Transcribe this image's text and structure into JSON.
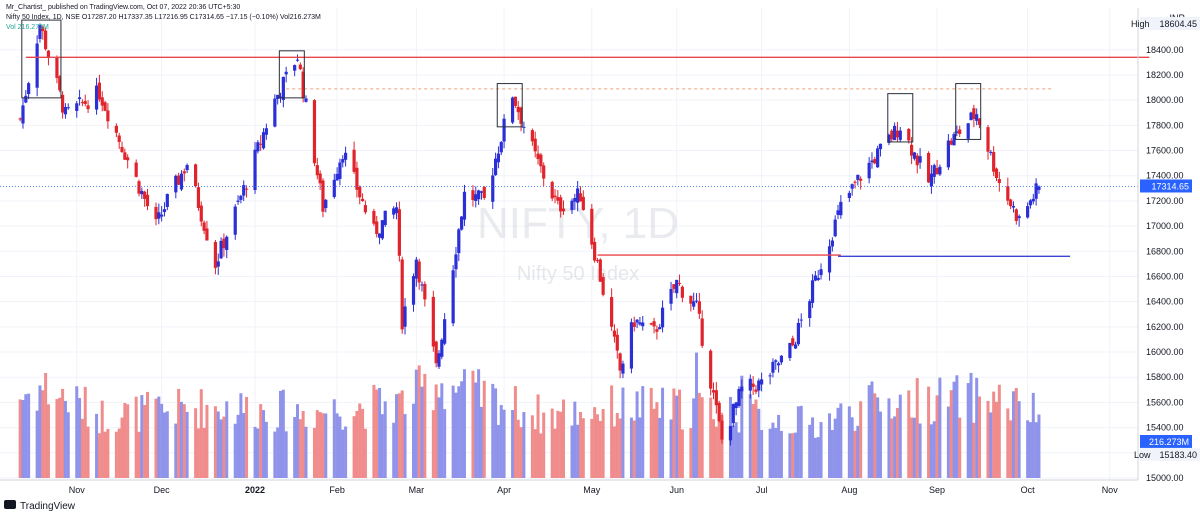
{
  "header": {
    "author_line": "Mr_Chartist_ published on TradingView.com, Oct 07, 2022 20:36 UTC+5:30",
    "ohlc_line": "Nifty 50 Index, 1D, NSE  O17287.20  H17337.35  L17216.95  C17314.65  −17.15 (−0.10%)  Vol216.273M",
    "vol_line": "Vol  216.273M"
  },
  "watermark": {
    "symbol": "NIFTY, 1D",
    "name": "Nifty 50 Index"
  },
  "footer": {
    "brand": "TradingView"
  },
  "colors": {
    "up": "#2a2fd6",
    "down": "#e0242c",
    "vol_up": "#8f93ea",
    "vol_down": "#f08c8c",
    "resistance": "#e8464a",
    "support": "#3b44d4",
    "price_tag": "#2962ff",
    "grid": "#f0f3fa"
  },
  "chart_data": {
    "type": "candlestick",
    "interval": "1D",
    "currency": "INR",
    "y_axis": {
      "currency_label": "INR",
      "range": [
        15000,
        18700
      ],
      "ticks": [
        15000,
        15200,
        15400,
        15600,
        15800,
        16000,
        16200,
        16400,
        16600,
        16800,
        17000,
        17200,
        17400,
        17600,
        17800,
        18000,
        18200,
        18400
      ]
    },
    "x_axis": {
      "tick_labels": [
        {
          "date": "2021-11-01",
          "label": "Nov"
        },
        {
          "date": "2021-12-01",
          "label": "Dec"
        },
        {
          "date": "2022-01-03",
          "label": "2022"
        },
        {
          "date": "2022-02-01",
          "label": "Feb"
        },
        {
          "date": "2022-03-01",
          "label": "Mar"
        },
        {
          "date": "2022-04-01",
          "label": "Apr"
        },
        {
          "date": "2022-05-02",
          "label": "May"
        },
        {
          "date": "2022-06-01",
          "label": "Jun"
        },
        {
          "date": "2022-07-01",
          "label": "Jul"
        },
        {
          "date": "2022-08-01",
          "label": "Aug"
        },
        {
          "date": "2022-09-01",
          "label": "Sep"
        },
        {
          "date": "2022-10-03",
          "label": "Oct"
        },
        {
          "date": "2022-11-01",
          "label": "Nov"
        }
      ]
    },
    "price_labels": {
      "high": {
        "label": "High",
        "value": "18604.45"
      },
      "last": {
        "value": "17314.65"
      },
      "volume": {
        "value": "216.273M"
      },
      "low": {
        "label": "Low",
        "value": "15183.40"
      }
    },
    "anchors": [
      {
        "date": "2021-10-12",
        "price": 17850
      },
      {
        "date": "2021-10-19",
        "price": 18604
      },
      {
        "date": "2021-10-28",
        "price": 17880
      },
      {
        "date": "2021-11-09",
        "price": 18060
      },
      {
        "date": "2021-11-29",
        "price": 17000
      },
      {
        "date": "2021-12-03",
        "price": 17200
      },
      {
        "date": "2021-12-10",
        "price": 17500
      },
      {
        "date": "2021-12-20",
        "price": 16700
      },
      {
        "date": "2021-12-31",
        "price": 17350
      },
      {
        "date": "2022-01-10",
        "price": 18000
      },
      {
        "date": "2022-01-18",
        "price": 18350
      },
      {
        "date": "2022-01-27",
        "price": 17150
      },
      {
        "date": "2022-02-03",
        "price": 17600
      },
      {
        "date": "2022-02-14",
        "price": 16950
      },
      {
        "date": "2022-02-22",
        "price": 17150
      },
      {
        "date": "2022-02-24",
        "price": 16250
      },
      {
        "date": "2022-03-01",
        "price": 16750
      },
      {
        "date": "2022-03-08",
        "price": 15870
      },
      {
        "date": "2022-03-18",
        "price": 17250
      },
      {
        "date": "2022-03-25",
        "price": 17200
      },
      {
        "date": "2022-04-04",
        "price": 18050
      },
      {
        "date": "2022-04-12",
        "price": 17550
      },
      {
        "date": "2022-04-20",
        "price": 17150
      },
      {
        "date": "2022-04-28",
        "price": 17250
      },
      {
        "date": "2022-05-04",
        "price": 16700
      },
      {
        "date": "2022-05-12",
        "price": 15850
      },
      {
        "date": "2022-05-17",
        "price": 16250
      },
      {
        "date": "2022-05-24",
        "price": 16150
      },
      {
        "date": "2022-06-01",
        "price": 16550
      },
      {
        "date": "2022-06-08",
        "price": 16350
      },
      {
        "date": "2022-06-17",
        "price": 15300
      },
      {
        "date": "2022-06-24",
        "price": 15700
      },
      {
        "date": "2022-07-01",
        "price": 15750
      },
      {
        "date": "2022-07-12",
        "price": 16050
      },
      {
        "date": "2022-07-22",
        "price": 16700
      },
      {
        "date": "2022-07-29",
        "price": 17150
      },
      {
        "date": "2022-08-05",
        "price": 17400
      },
      {
        "date": "2022-08-19",
        "price": 17800
      },
      {
        "date": "2022-08-29",
        "price": 17350
      },
      {
        "date": "2022-09-05",
        "price": 17650
      },
      {
        "date": "2022-09-15",
        "price": 17900
      },
      {
        "date": "2022-09-23",
        "price": 17350
      },
      {
        "date": "2022-09-30",
        "price": 17050
      },
      {
        "date": "2022-10-07",
        "price": 17314
      }
    ],
    "volume_anchors": [
      {
        "date": "2021-10-12",
        "value": 260
      },
      {
        "date": "2021-10-20",
        "value": 290
      },
      {
        "date": "2021-11-10",
        "value": 200
      },
      {
        "date": "2021-12-20",
        "value": 230
      },
      {
        "date": "2022-01-20",
        "value": 210
      },
      {
        "date": "2022-02-24",
        "value": 240
      },
      {
        "date": "2022-03-08",
        "value": 310
      },
      {
        "date": "2022-04-15",
        "value": 200
      },
      {
        "date": "2022-05-12",
        "value": 230
      },
      {
        "date": "2022-06-17",
        "value": 220
      },
      {
        "date": "2022-07-20",
        "value": 170
      },
      {
        "date": "2022-08-10",
        "value": 240
      },
      {
        "date": "2022-09-20",
        "value": 260
      },
      {
        "date": "2022-10-07",
        "value": 200
      }
    ],
    "volume_spikes": [
      {
        "date": "2022-06-08",
        "value": 380
      },
      {
        "date": "2022-06-24",
        "value": 310
      }
    ],
    "levels": [
      {
        "name": "resistance",
        "price": 18340,
        "from": "2021-10-14",
        "to": "2022-11-15",
        "style": "solid"
      },
      {
        "name": "intermediate-resistance",
        "price": 18090,
        "from": "2022-01-14",
        "to": "2022-10-12",
        "style": "dashed"
      },
      {
        "name": "support-mid",
        "price": 16770,
        "from": "2022-05-04",
        "to": "2022-07-29",
        "style": "solid-red"
      },
      {
        "name": "support",
        "price": 16760,
        "from": "2022-07-28",
        "to": "2022-10-18",
        "style": "solid-blue"
      }
    ],
    "highlight_boxes": [
      {
        "from": "2021-10-14",
        "to": "2021-10-25",
        "high": 18604,
        "low": 18050
      },
      {
        "from": "2022-01-13",
        "to": "2022-01-19",
        "high": 18360,
        "low": 18050
      },
      {
        "from": "2022-03-31",
        "to": "2022-04-06",
        "high": 18100,
        "low": 17820
      },
      {
        "from": "2022-08-16",
        "to": "2022-08-22",
        "high": 18020,
        "low": 17700
      },
      {
        "from": "2022-09-09",
        "to": "2022-09-15",
        "high": 18100,
        "low": 17720
      }
    ]
  }
}
